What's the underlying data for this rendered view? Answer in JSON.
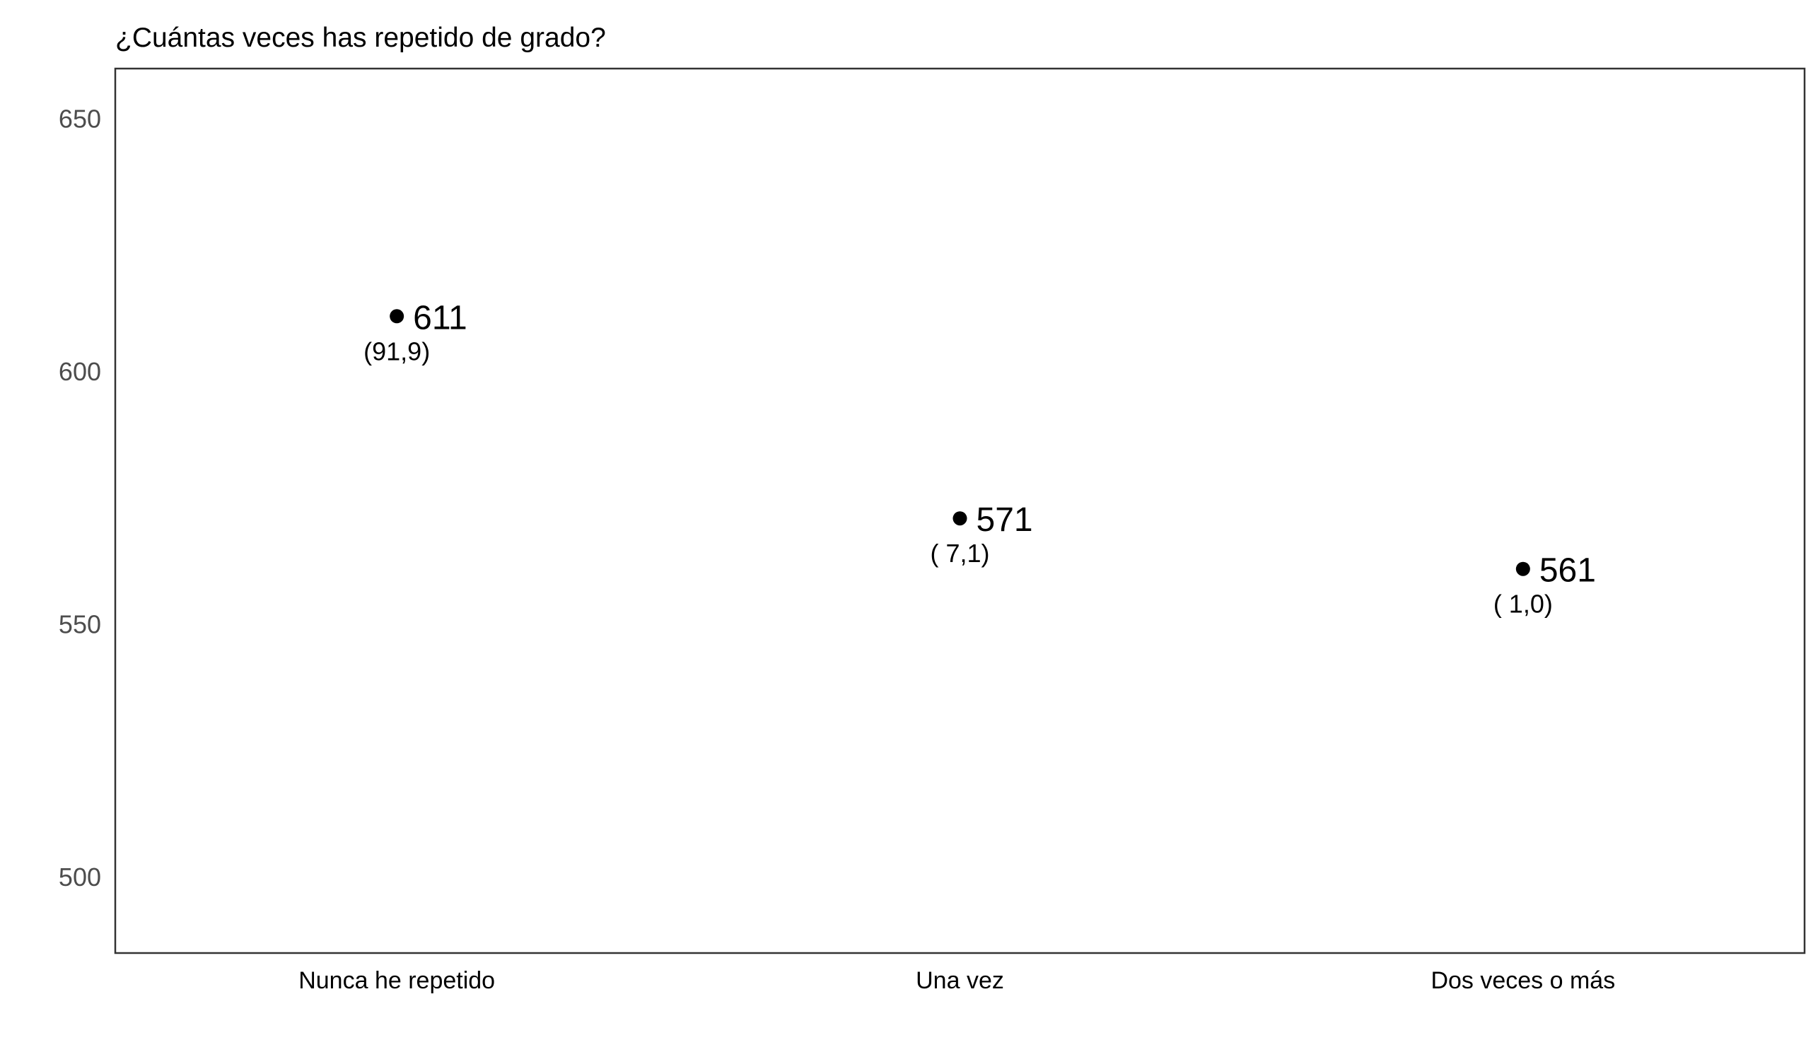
{
  "chart_data": {
    "type": "scatter",
    "title": "¿Cuántas veces has repetido de grado?",
    "xlabel": "",
    "ylabel": "",
    "categories": [
      "Nunca he repetido",
      "Una vez",
      "Dos veces o más"
    ],
    "values": [
      611,
      571,
      561
    ],
    "value_labels": [
      "611",
      "571",
      "561"
    ],
    "percent_labels": [
      "(91,9)",
      "( 7,1)",
      "( 1,0)"
    ],
    "ylim": [
      485,
      660
    ],
    "yticks": [
      500,
      550,
      600,
      650
    ],
    "ytick_labels": [
      "500",
      "550",
      "600",
      "650"
    ],
    "grid": false,
    "legend": "none",
    "colors": {
      "point": "#000000",
      "axis_text": "#4d4d4d",
      "frame": "#333333",
      "background": "#ffffff"
    }
  }
}
